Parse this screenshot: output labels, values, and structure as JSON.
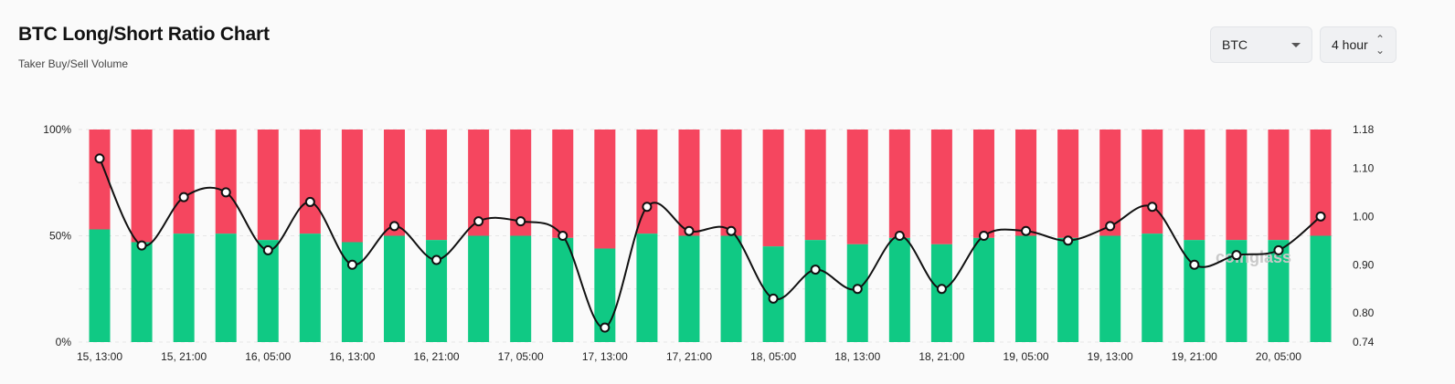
{
  "header": {
    "title": "BTC Long/Short Ratio Chart",
    "subtitle": "Taker Buy/Sell Volume"
  },
  "controls": {
    "coin_label": "BTC",
    "interval_label": "4 hour"
  },
  "watermark": "coinglass",
  "colors": {
    "long": "#10c984",
    "short": "#f5465f",
    "ratio_line": "#111111"
  },
  "chart_data": {
    "type": "bar",
    "stacked_percent": true,
    "categories": [
      "15, 13:00",
      "15, 17:00",
      "15, 21:00",
      "16, 01:00",
      "16, 05:00",
      "16, 09:00",
      "16, 13:00",
      "16, 17:00",
      "16, 21:00",
      "17, 01:00",
      "17, 05:00",
      "17, 09:00",
      "17, 13:00",
      "17, 17:00",
      "17, 21:00",
      "18, 01:00",
      "18, 05:00",
      "18, 09:00",
      "18, 13:00",
      "18, 17:00",
      "18, 21:00",
      "19, 01:00",
      "19, 05:00",
      "19, 09:00",
      "19, 13:00",
      "19, 17:00",
      "19, 21:00",
      "20, 01:00",
      "20, 05:00",
      "20, 09:00"
    ],
    "x_tick_labels": [
      "15, 13:00",
      "15, 21:00",
      "16, 05:00",
      "16, 13:00",
      "16, 21:00",
      "17, 05:00",
      "17, 13:00",
      "17, 21:00",
      "18, 05:00",
      "18, 13:00",
      "18, 21:00",
      "19, 05:00",
      "19, 13:00",
      "19, 21:00",
      "20, 05:00"
    ],
    "series": [
      {
        "name": "Long",
        "values": [
          53,
          47,
          51,
          51,
          48,
          51,
          47,
          50,
          48,
          50,
          50,
          49,
          44,
          51,
          50,
          50,
          45,
          48,
          46,
          49,
          46,
          49,
          50,
          49,
          50,
          51,
          48,
          48,
          48,
          50
        ]
      },
      {
        "name": "Short",
        "values": [
          47,
          53,
          49,
          49,
          52,
          49,
          53,
          50,
          52,
          50,
          50,
          51,
          56,
          49,
          50,
          50,
          55,
          52,
          54,
          51,
          54,
          51,
          50,
          51,
          50,
          49,
          52,
          52,
          52,
          50
        ]
      },
      {
        "name": "Long/Short Ratio",
        "axis": "right",
        "values": [
          1.12,
          0.94,
          1.04,
          1.05,
          0.93,
          1.03,
          0.9,
          0.98,
          0.91,
          0.99,
          0.99,
          0.96,
          0.77,
          1.02,
          0.97,
          0.97,
          0.83,
          0.89,
          0.85,
          0.96,
          0.85,
          0.96,
          0.97,
          0.95,
          0.98,
          1.02,
          0.9,
          0.92,
          0.93,
          1.0
        ]
      }
    ],
    "y_left": {
      "ticks": [
        "0%",
        "50%",
        "100%"
      ],
      "range": [
        0,
        100
      ]
    },
    "y_right": {
      "ticks": [
        "0.74",
        "0.80",
        "0.90",
        "1.00",
        "1.10",
        "1.18"
      ],
      "range": [
        0.74,
        1.18
      ]
    },
    "grid": true
  }
}
